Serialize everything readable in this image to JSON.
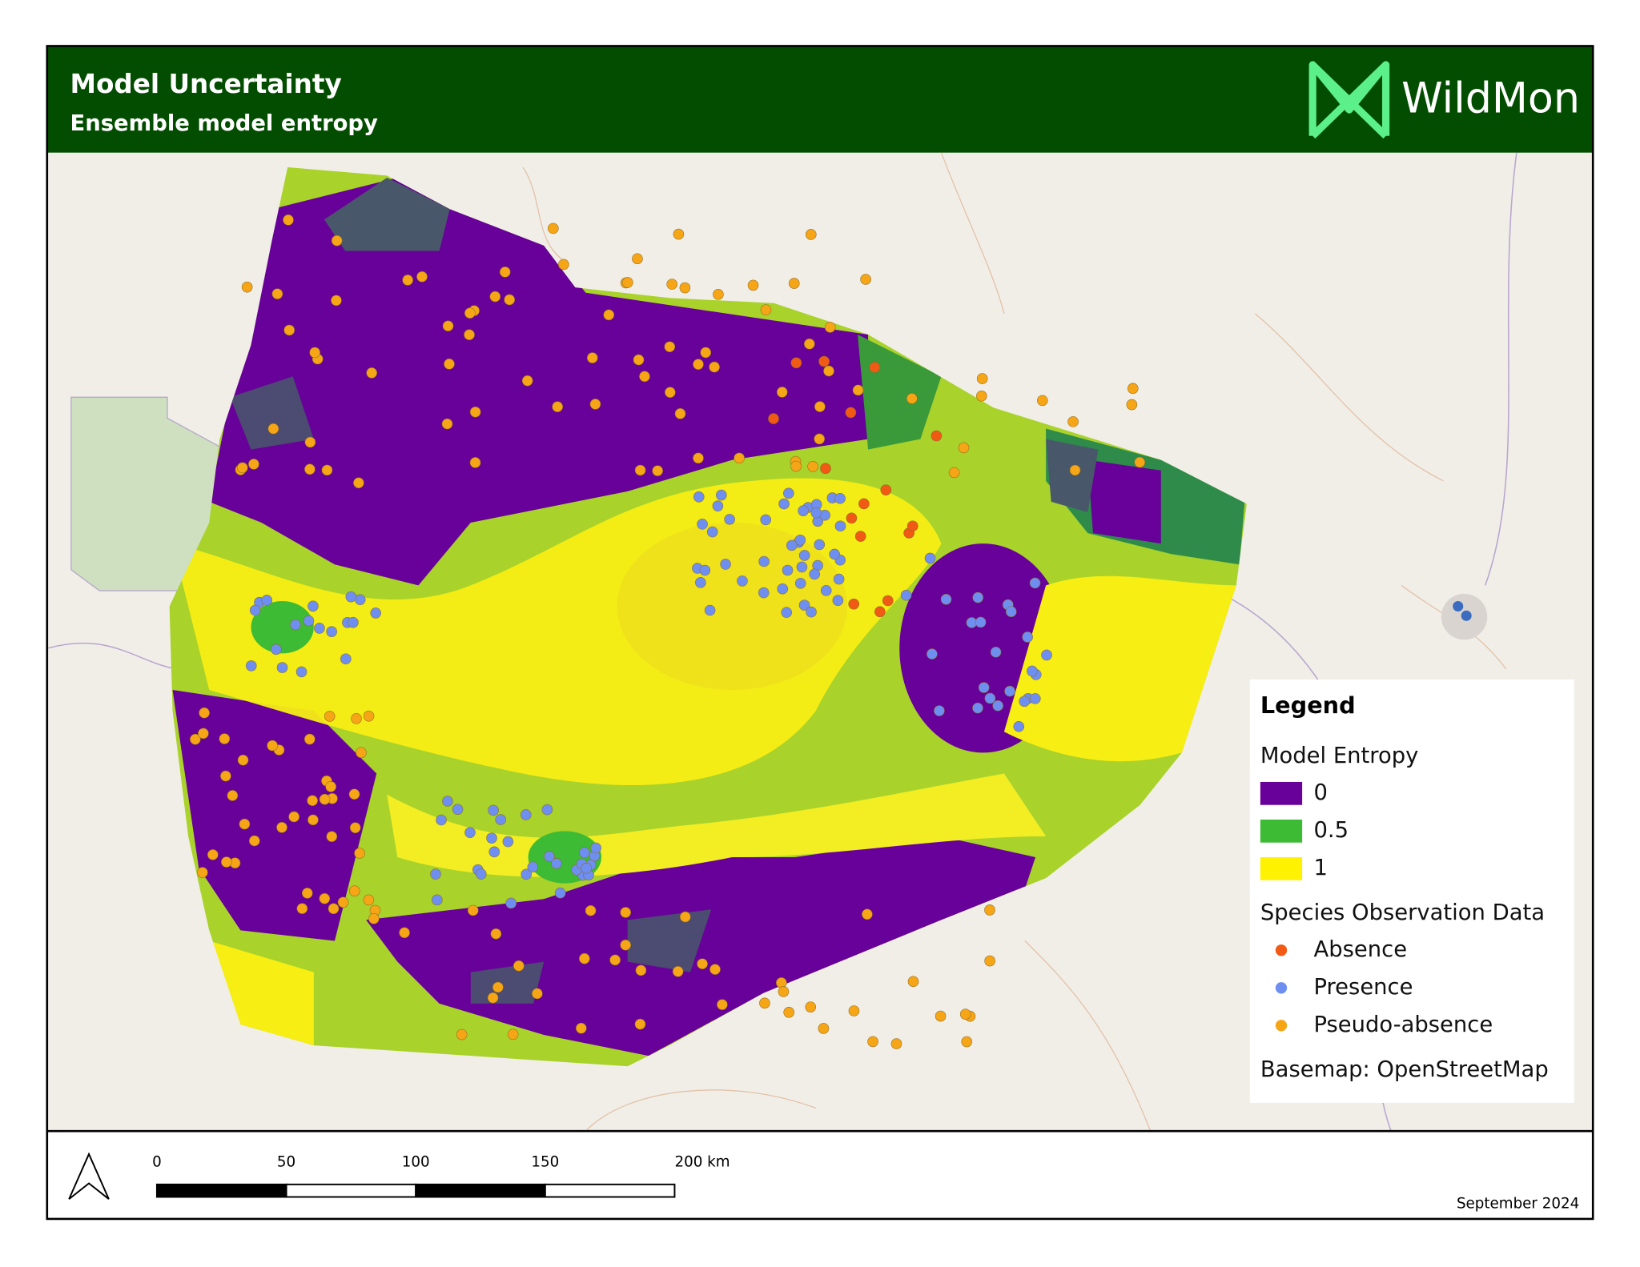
{
  "header": {
    "title": "Model Uncertainty",
    "subtitle": "Ensemble model entropy",
    "logo": "WildMon"
  },
  "legend": {
    "title": "Legend",
    "entropy_title": "Model Entropy",
    "entropy": [
      {
        "label": "0",
        "color": "#68009a"
      },
      {
        "label": "0.5",
        "color": "#3dbb35"
      },
      {
        "label": "1",
        "color": "#fff200"
      }
    ],
    "observations_title": "Species Observation Data",
    "observations": [
      {
        "label": "Absence",
        "color": "#f05a14"
      },
      {
        "label": "Presence",
        "color": "#6e8ff0"
      },
      {
        "label": "Pseudo-absence",
        "color": "#f5a516"
      }
    ],
    "basemap": "Basemap: OpenStreetMap"
  },
  "scale_bar": {
    "labels": [
      "0",
      "50",
      "100",
      "150",
      "200 km"
    ]
  },
  "footer": {
    "date": "September 2024"
  }
}
